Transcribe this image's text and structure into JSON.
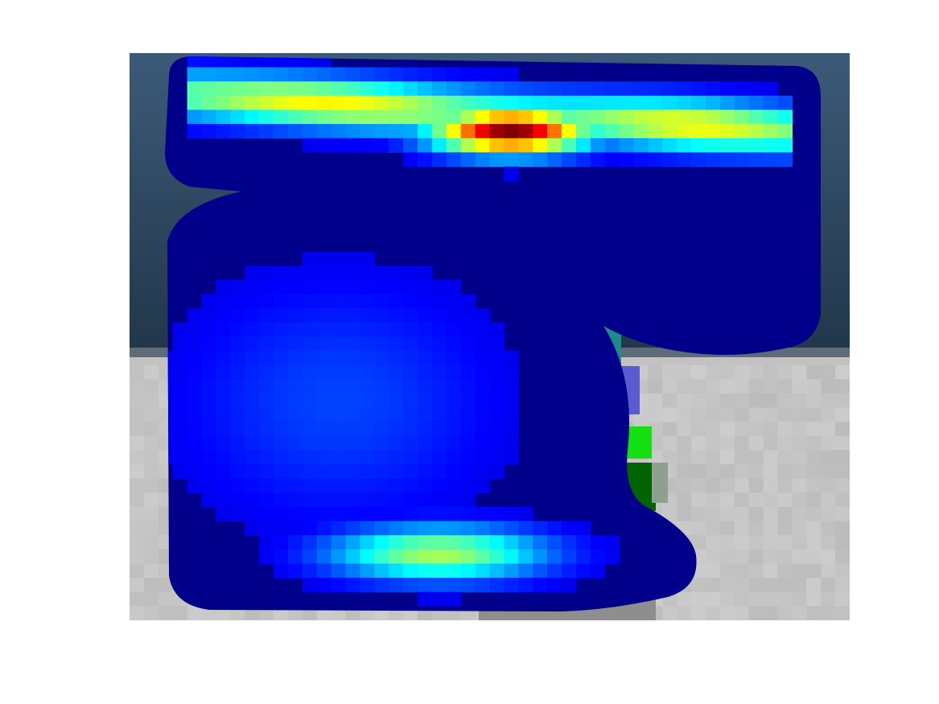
{
  "figure": {
    "background": "#ffffff",
    "description_free": true
  },
  "image": {
    "grid_cols": 50,
    "grid_rows": 40,
    "scene": {
      "sky_top": "#3c5a78",
      "sky_bottom": "#22374b",
      "floor": "#c2c2c2",
      "floor_shadow": "#8e8e8e",
      "object_edge_teal": "#1f8a8a",
      "object_edge_green": "#14e014",
      "object_edge_darkgreen": "#006400"
    },
    "heatmap": {
      "colormap": "jet",
      "base_color": "#00008b",
      "peaks": [
        {
          "name": "top-band",
          "level": 0.55
        },
        {
          "name": "top-hotspot",
          "level": 1.0
        },
        {
          "name": "bottom-band",
          "level": 0.5
        },
        {
          "name": "center-glow",
          "level": 0.12
        }
      ]
    }
  }
}
